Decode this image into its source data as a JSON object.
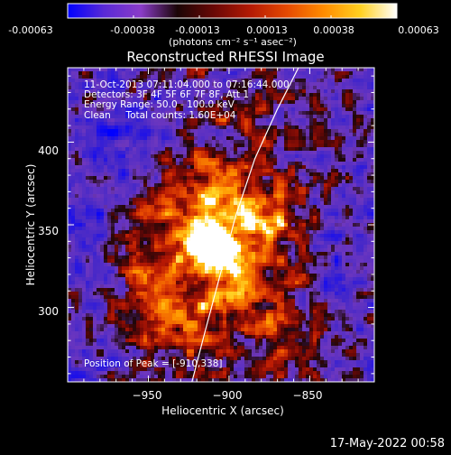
{
  "colorbar": {
    "tick_labels": [
      "-0.00063",
      "-0.00038",
      "-0.00013",
      "0.00013",
      "0.00038",
      "0.00063"
    ],
    "unit_label": "(photons cm⁻² s⁻¹ asec⁻²)",
    "colors": [
      "#0000ff",
      "#5a2ad6",
      "#8a3cc8",
      "#1a0506",
      "#6a0806",
      "#b41a04",
      "#e64a02",
      "#ff8c00",
      "#ffd020",
      "#ffffff"
    ]
  },
  "chart_data": {
    "type": "heatmap",
    "title": "Reconstructed RHESSI Image",
    "xlabel": "Heliocentric X (arcsec)",
    "ylabel": "Heliocentric Y (arcsec)",
    "xlim": [
      -1000,
      -810
    ],
    "ylim": [
      255,
      445
    ],
    "x_ticks": [
      -950,
      -900,
      -850
    ],
    "x_tick_labels": [
      "−950",
      "−900",
      "−850"
    ],
    "y_ticks": [
      300,
      350,
      400
    ],
    "y_tick_labels": [
      "300",
      "350",
      "400"
    ],
    "annotations": [
      "11-Oct-2013 07:11:04.000 to 07:16:44.000",
      "Detectors: 3F 4F 5F 6F 7F 8F, Att 1",
      "Energy Range: 50.0 - 100.0 keV",
      "Clean     Total counts: 1.60E+04"
    ],
    "peak_label": "Position of Peak = [-910,338]",
    "peak": [
      -910,
      338
    ],
    "limb_points": [
      [
        -923,
        255
      ],
      [
        -915,
        285
      ],
      [
        -906,
        318
      ],
      [
        -896,
        355
      ],
      [
        -884,
        390
      ],
      [
        -870,
        420
      ],
      [
        -857,
        445
      ]
    ],
    "grid": false
  },
  "footer": {
    "timestamp": "17-May-2022 00:58"
  }
}
